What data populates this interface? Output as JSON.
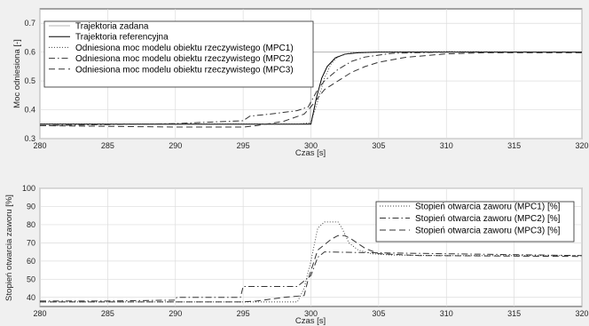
{
  "chart_data": [
    {
      "type": "line",
      "xlabel": "Czas [s]",
      "ylabel": "Moc odniesiona [-]",
      "xlim": [
        280,
        320
      ],
      "ylim": [
        0.3,
        0.75
      ],
      "xticks": [
        280,
        285,
        290,
        295,
        300,
        305,
        310,
        315,
        320
      ],
      "yticks": [
        0.3,
        0.4,
        0.5,
        0.6,
        0.7
      ],
      "ytick_labels": [
        "0.3",
        "0.4",
        "0.5",
        "0.6",
        "0.7"
      ],
      "grid": true,
      "legend_position": "top-left",
      "series": [
        {
          "name": "Trajektoria zadana",
          "style": "solid",
          "color": "#b4b4b4",
          "x": [
            280,
            299.95,
            300.05,
            320
          ],
          "y": [
            0.35,
            0.35,
            0.6,
            0.6
          ]
        },
        {
          "name": "Trajektoria referencyjna",
          "style": "solid",
          "color": "#000000",
          "x": [
            280,
            300,
            300.4,
            300.8,
            301.2,
            301.8,
            302.5,
            303.5,
            305,
            320
          ],
          "y": [
            0.35,
            0.35,
            0.44,
            0.51,
            0.55,
            0.58,
            0.593,
            0.598,
            0.6,
            0.6
          ]
        },
        {
          "name": "Odniesiona moc modelu obiektu rzeczywistego (MPC1)",
          "style": "dotted",
          "color": "#444444",
          "x": [
            280,
            299,
            300,
            300.5,
            301,
            301.5,
            302,
            303,
            305,
            310,
            320
          ],
          "y": [
            0.35,
            0.35,
            0.355,
            0.43,
            0.51,
            0.56,
            0.585,
            0.598,
            0.6,
            0.602,
            0.6
          ]
        },
        {
          "name": "Odniesiona moc modelu obiektu rzeczywistego (MPC2)",
          "style": "dashdot",
          "color": "#333333",
          "x": [
            280,
            290,
            295,
            295.5,
            297,
            299,
            299.8,
            300.5,
            301,
            302,
            303,
            304,
            306,
            310,
            320
          ],
          "y": [
            0.345,
            0.352,
            0.362,
            0.378,
            0.385,
            0.397,
            0.41,
            0.47,
            0.5,
            0.54,
            0.568,
            0.583,
            0.596,
            0.6,
            0.6
          ]
        },
        {
          "name": "Odniesiona moc modelu obiektu rzeczywistego (MPC3)",
          "style": "dashed",
          "color": "#333333",
          "x": [
            280,
            290,
            295,
            296,
            298,
            299.5,
            300,
            300.5,
            301,
            302,
            303,
            304,
            305,
            307,
            310,
            313,
            320
          ],
          "y": [
            0.345,
            0.34,
            0.34,
            0.345,
            0.36,
            0.385,
            0.41,
            0.44,
            0.47,
            0.5,
            0.53,
            0.55,
            0.565,
            0.582,
            0.594,
            0.598,
            0.598
          ]
        }
      ]
    },
    {
      "type": "line",
      "xlabel": "Czas [s]",
      "ylabel": "Stopień otwarcia zaworu [%]",
      "xlim": [
        280,
        320
      ],
      "ylim": [
        35,
        100
      ],
      "xticks": [
        280,
        285,
        290,
        295,
        300,
        305,
        310,
        315,
        320
      ],
      "yticks": [
        40,
        50,
        60,
        70,
        80,
        90,
        100
      ],
      "ytick_labels": [
        "40",
        "50",
        "60",
        "70",
        "80",
        "90",
        "100"
      ],
      "grid": true,
      "legend_position": "top-right",
      "series": [
        {
          "name": "Stopień otwarcia zaworu (MPC1) [%]",
          "style": "dotted",
          "color": "#444444",
          "x": [
            280,
            299,
            299.5,
            300,
            300.5,
            301,
            302,
            302.3,
            302.8,
            303.5,
            304.5,
            306,
            310,
            320
          ],
          "y": [
            37.5,
            37.5,
            45,
            60,
            78,
            81.5,
            81.5,
            78,
            70,
            66,
            64,
            63.3,
            63,
            63
          ]
        },
        {
          "name": "Stopień otwarcia zaworu (MPC2) [%]",
          "style": "dashdot",
          "color": "#333333",
          "x": [
            280,
            285,
            290,
            290.1,
            294.8,
            295,
            299,
            300,
            300.5,
            301,
            305,
            310,
            320
          ],
          "y": [
            38,
            38,
            38.5,
            40,
            40,
            46,
            46,
            52,
            62,
            65,
            64.5,
            64,
            63
          ]
        },
        {
          "name": "Stopień otwarcia zaworu (MPC3) [%]",
          "style": "dashed",
          "color": "#333333",
          "x": [
            280,
            290,
            295,
            296,
            298,
            299.5,
            299.8,
            300.5,
            301.5,
            302,
            302.5,
            303,
            304,
            305,
            308,
            320
          ],
          "y": [
            37.5,
            37.5,
            37.5,
            38,
            40,
            41,
            50,
            66,
            72,
            74,
            74,
            72,
            67,
            64,
            63,
            62.5
          ]
        }
      ]
    }
  ]
}
